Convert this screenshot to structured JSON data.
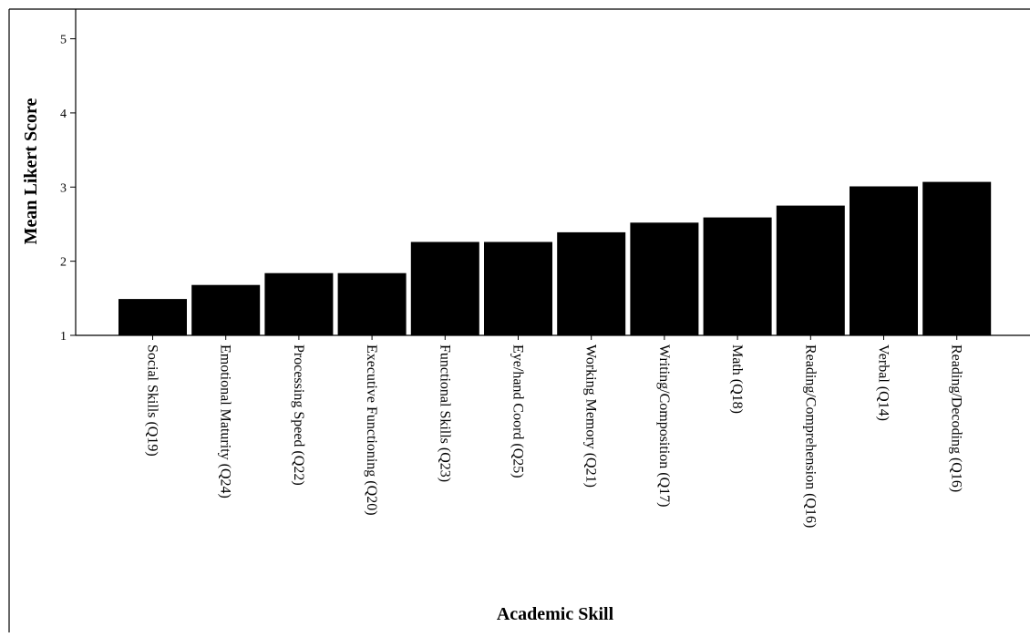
{
  "chart_data": {
    "type": "bar",
    "title": "",
    "xlabel": "Academic Skill",
    "ylabel": "Mean Likert Score",
    "categories": [
      "Social Skills (Q19)",
      "Emotional Maturity (Q24)",
      "Processing Speed (Q22)",
      "Executive Functioning (Q20)",
      "Functional Skills (Q23)",
      "Eye/hand Coord (Q25)",
      "Working Memory (Q21)",
      "Writing/Composition (Q17)",
      "Math (Q18)",
      "Reading/Comprehension (Q16)",
      "Verbal (Q14)",
      "Reading/Decoding (Q16)"
    ],
    "values": [
      1.49,
      1.68,
      1.84,
      1.84,
      2.26,
      2.26,
      2.39,
      2.52,
      2.59,
      2.75,
      3.01,
      3.07
    ],
    "ylim": [
      1,
      5.4
    ],
    "yticks": [
      1,
      2,
      3,
      4,
      5
    ],
    "bar_color": "#000000",
    "grid": false,
    "legend": "none"
  }
}
